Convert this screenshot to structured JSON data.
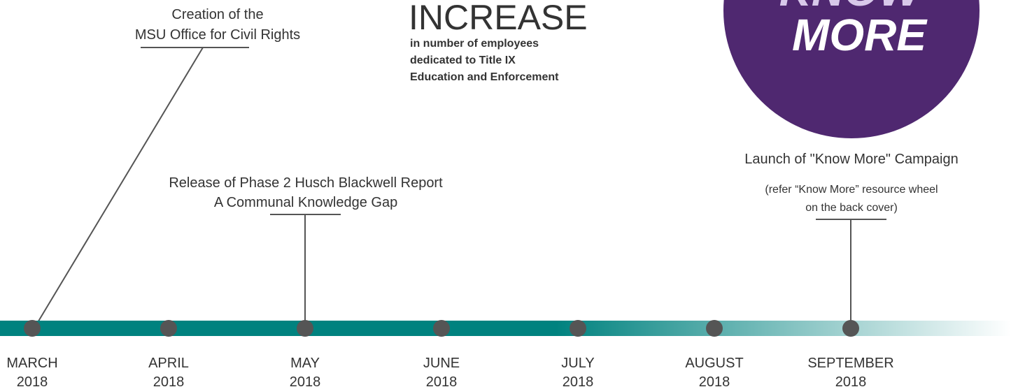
{
  "timeline": {
    "months": [
      {
        "month": "MARCH",
        "year": "2018"
      },
      {
        "month": "APRIL",
        "year": "2018"
      },
      {
        "month": "MAY",
        "year": "2018"
      },
      {
        "month": "JUNE",
        "year": "2018"
      },
      {
        "month": "JULY",
        "year": "2018"
      },
      {
        "month": "AUGUST",
        "year": "2018"
      },
      {
        "month": "SEPTEMBER",
        "year": "2018"
      }
    ],
    "events": [
      {
        "lines": [
          "Creation of the",
          "MSU Office for Civil Rights"
        ]
      },
      {
        "lines": [
          "Release of Phase 2 Husch Blackwell Report",
          "A Communal Knowledge Gap"
        ]
      },
      {
        "lines": [
          "Launch of \"Know More\" Campaign"
        ],
        "note": [
          "(refer “Know More” resource wheel",
          "on the back cover)"
        ]
      }
    ],
    "highlight": {
      "headline": "INCREASE",
      "lines": [
        "in number of employees",
        "dedicated to Title IX",
        "Education and Enforcement"
      ]
    },
    "logo": {
      "top": "KNOW",
      "bottom": "MORE"
    }
  }
}
